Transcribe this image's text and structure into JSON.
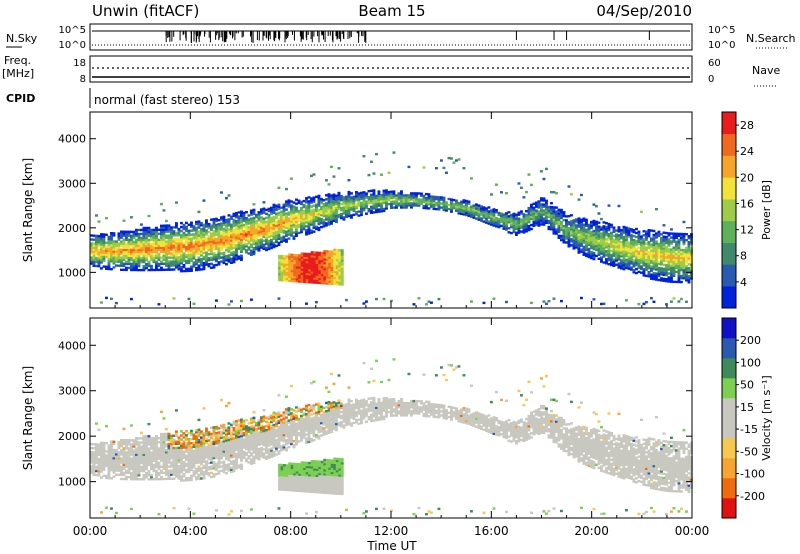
{
  "header": {
    "site": "Unwin (fitACF)",
    "beam": "Beam 15",
    "date": "04/Sep/2010"
  },
  "status_panel": {
    "nsky_label": "N.Sky",
    "nsky_ticks": [
      "10^5",
      "10^0"
    ],
    "nsearch_label": "N.Search",
    "nsearch_ticks": [
      "10^5",
      "10^0"
    ],
    "freq_label_1": "Freq.",
    "freq_label_2": "[MHz]",
    "freq_ticks": [
      "18",
      "8"
    ],
    "nave_label": "Nave",
    "nave_ticks": [
      "60",
      "0"
    ],
    "cpid_label": "CPID",
    "cpid_text": "normal (fast stereo) 153"
  },
  "colors": {
    "power": [
      "#0022dd",
      "#2a5ab0",
      "#3f8a6a",
      "#5fb05a",
      "#9ccc48",
      "#f2e23a",
      "#f6a52a",
      "#f06a1e",
      "#e81c1c"
    ],
    "velocity": [
      "#e01010",
      "#f06a10",
      "#f6a530",
      "#f6c850",
      "#c8c8c0",
      "#c8c8c0",
      "#7ccf50",
      "#3f8a5a",
      "#2a5ab0",
      "#1010c8"
    ]
  },
  "chart_data": [
    {
      "type": "heatmap",
      "title": "Power",
      "ylabel": "Slant Range [km]",
      "xlabel": "",
      "ylim": [
        200,
        4600
      ],
      "y_ticks": [
        "1000",
        "2000",
        "3000",
        "4000"
      ],
      "x_ticks": [
        "00:00",
        "04:00",
        "08:00",
        "12:00",
        "16:00",
        "20:00",
        "00:00"
      ],
      "colorbar": {
        "label": "Power [dB]",
        "ticks": [
          "4",
          "8",
          "12",
          "16",
          "20",
          "24",
          "28"
        ],
        "range": [
          0,
          30
        ]
      },
      "x": [
        0,
        1,
        2,
        3,
        4,
        5,
        6,
        7,
        8,
        9,
        10,
        11,
        12,
        13,
        14,
        15,
        16,
        17,
        18,
        19,
        20,
        21,
        22,
        23,
        24
      ],
      "band_center_km": [
        1450,
        1450,
        1480,
        1520,
        1560,
        1650,
        1800,
        1950,
        2150,
        2300,
        2450,
        2550,
        2600,
        2580,
        2520,
        2400,
        2200,
        2050,
        2350,
        1900,
        1700,
        1550,
        1400,
        1320,
        1300
      ],
      "band_peak_db": [
        22,
        23,
        24,
        24,
        25,
        24,
        25,
        24,
        22,
        18,
        16,
        15,
        15,
        14,
        14,
        14,
        13,
        13,
        12,
        13,
        16,
        18,
        20,
        20,
        20
      ],
      "blob": {
        "x_hours": [
          7.5,
          10
        ],
        "range_km": [
          700,
          1500
        ],
        "peak_db": 28
      }
    },
    {
      "type": "heatmap",
      "title": "Velocity",
      "ylabel": "Slant Range [km]",
      "xlabel": "Time UT",
      "ylim": [
        200,
        4600
      ],
      "y_ticks": [
        "1000",
        "2000",
        "3000",
        "4000"
      ],
      "x_ticks": [
        "00:00",
        "04:00",
        "08:00",
        "12:00",
        "16:00",
        "20:00",
        "00:00"
      ],
      "colorbar": {
        "label": "Velocity [m s⁻¹]",
        "ticks": [
          "200",
          "100",
          "50",
          "15",
          "-15",
          "-50",
          "-100",
          "-200"
        ],
        "range": [
          -250,
          250
        ]
      },
      "ground_scatter_velocity": 0
    }
  ]
}
